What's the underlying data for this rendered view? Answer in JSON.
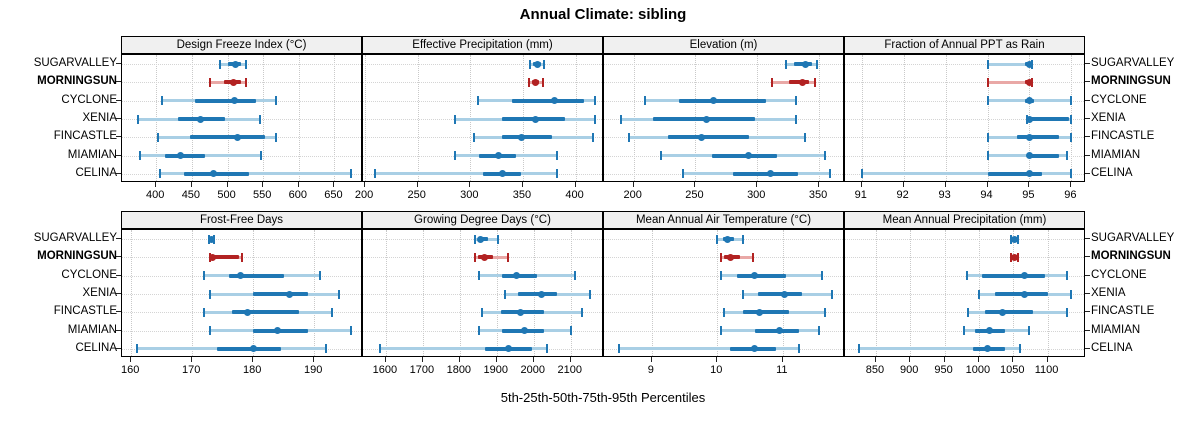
{
  "title": "Annual Climate: sibling",
  "caption": "5th-25th-50th-75th-95th Percentiles",
  "colors": {
    "blue": "#1f77b4",
    "blue_light": "#a9cfe5",
    "red": "#b22222",
    "red_light": "#e9a8a6",
    "grid": "#c9c9c9",
    "strip_bg": "#f0f0f0",
    "border": "#000000"
  },
  "chart_data": {
    "type": "dotplot-percentiles",
    "title": "Annual Climate: sibling",
    "caption": "5th-25th-50th-75th-95th Percentiles",
    "percentiles": [
      "5th",
      "25th",
      "50th",
      "75th",
      "95th"
    ],
    "sites": [
      "SUGARVALLEY",
      "MORNINGSUN",
      "CYCLONE",
      "XENIA",
      "FINCASTLE",
      "MIAMIAN",
      "CELINA"
    ],
    "highlight_site": "MORNINGSUN",
    "legend_position": "none",
    "grid": "dotted",
    "panels": [
      {
        "label": "Design Freeze Index (°C)",
        "row": 0,
        "col": 0,
        "xlim": [
          352,
          690
        ],
        "ticks": [
          400,
          450,
          500,
          550,
          600,
          650
        ],
        "values": {
          "SUGARVALLEY": [
            490,
            500,
            511,
            519,
            526
          ],
          "MORNINGSUN": [
            476,
            495,
            509,
            519,
            526
          ],
          "CYCLONE": [
            408,
            455,
            510,
            540,
            568
          ],
          "XENIA": [
            375,
            430,
            462,
            497,
            545
          ],
          "FINCASTLE": [
            403,
            448,
            514,
            552,
            568
          ],
          "MIAMIAN": [
            377,
            413,
            434,
            469,
            547
          ],
          "CELINA": [
            405,
            439,
            481,
            530,
            673
          ]
        }
      },
      {
        "label": "Effective Precipitation (mm)",
        "row": 0,
        "col": 1,
        "xlim": [
          198,
          427
        ],
        "ticks": [
          200,
          250,
          300,
          350,
          400
        ],
        "values": {
          "SUGARVALLEY": [
            357,
            360,
            364,
            367,
            370
          ],
          "MORNINGSUN": [
            356,
            359,
            362,
            365,
            369
          ],
          "CYCLONE": [
            307,
            340,
            380,
            408,
            418
          ],
          "XENIA": [
            285,
            330,
            362,
            390,
            418
          ],
          "FINCASTLE": [
            303,
            330,
            349,
            378,
            417
          ],
          "MIAMIAN": [
            285,
            308,
            327,
            343,
            382
          ],
          "CELINA": [
            209,
            312,
            331,
            348,
            382
          ]
        }
      },
      {
        "label": "Elevation (m)",
        "row": 0,
        "col": 2,
        "xlim": [
          176,
          371
        ],
        "ticks": [
          200,
          250,
          300,
          350
        ],
        "values": {
          "SUGARVALLEY": [
            323,
            330,
            339,
            344,
            348
          ],
          "MORNINGSUN": [
            312,
            326,
            337,
            342,
            347
          ],
          "CYCLONE": [
            209,
            237,
            265,
            307,
            331
          ],
          "XENIA": [
            190,
            216,
            259,
            298,
            331
          ],
          "FINCASTLE": [
            196,
            228,
            255,
            293,
            339
          ],
          "MIAMIAN": [
            222,
            263,
            293,
            316,
            355
          ],
          "CELINA": [
            240,
            280,
            311,
            333,
            359
          ]
        }
      },
      {
        "label": "Fraction of Annual PPT as Rain",
        "row": 0,
        "col": 3,
        "xlim": [
          90.6,
          96.35
        ],
        "ticks": [
          91,
          92,
          93,
          94,
          95,
          96
        ],
        "values": {
          "SUGARVALLEY": [
            94,
            94.9,
            95,
            95,
            95.05
          ],
          "MORNINGSUN": [
            94,
            94.9,
            95,
            95,
            95.05
          ],
          "CYCLONE": [
            94,
            94.9,
            95,
            95.1,
            96
          ],
          "XENIA": [
            94.95,
            95,
            95,
            95.95,
            96
          ],
          "FINCASTLE": [
            94,
            94.7,
            95,
            95.7,
            96
          ],
          "MIAMIAN": [
            94,
            94.95,
            95,
            95.7,
            95.9
          ],
          "CELINA": [
            91,
            94,
            95,
            95.3,
            96
          ]
        }
      },
      {
        "label": "Frost-Free Days",
        "row": 1,
        "col": 0,
        "xlim": [
          158.5,
          198
        ],
        "ticks": [
          160,
          170,
          180,
          190
        ],
        "values": {
          "SUGARVALLEY": [
            172.8,
            173,
            173.1,
            173.3,
            173.5
          ],
          "MORNINGSUN": [
            172.9,
            173.1,
            173.3,
            177.7,
            178.2
          ],
          "CYCLONE": [
            172,
            176,
            178,
            185,
            191
          ],
          "XENIA": [
            173,
            180,
            186,
            189,
            194
          ],
          "FINCASTLE": [
            172,
            176.5,
            179,
            187.5,
            193
          ],
          "MIAMIAN": [
            173,
            180,
            184,
            189,
            196
          ],
          "CELINA": [
            161,
            174,
            180,
            184.5,
            192
          ]
        }
      },
      {
        "label": "Growing Degree Days (°C)",
        "row": 1,
        "col": 1,
        "xlim": [
          1538,
          2190
        ],
        "ticks": [
          1600,
          1700,
          1800,
          1900,
          2000,
          2100
        ],
        "values": {
          "SUGARVALLEY": [
            1840,
            1848,
            1857,
            1876,
            1903
          ],
          "MORNINGSUN": [
            1840,
            1850,
            1866,
            1890,
            1930
          ],
          "CYCLONE": [
            1852,
            1915,
            1952,
            2008,
            2112
          ],
          "XENIA": [
            1923,
            1957,
            2022,
            2063,
            2153
          ],
          "FINCASTLE": [
            1860,
            1910,
            1964,
            2028,
            2130
          ],
          "MIAMIAN": [
            1851,
            1914,
            1975,
            2027,
            2101
          ],
          "CELINA": [
            1585,
            1869,
            1932,
            1995,
            2036
          ]
        }
      },
      {
        "label": "Mean Annual Air Temperature (°C)",
        "row": 1,
        "col": 2,
        "xlim": [
          8.27,
          11.95
        ],
        "ticks": [
          9,
          10,
          11
        ],
        "values": {
          "SUGARVALLEY": [
            10.0,
            10.08,
            10.15,
            10.25,
            10.4
          ],
          "MORNINGSUN": [
            10.05,
            10.1,
            10.2,
            10.35,
            10.55
          ],
          "CYCLONE": [
            10.05,
            10.3,
            10.57,
            11.05,
            11.6
          ],
          "XENIA": [
            10.4,
            10.62,
            11.02,
            11.3,
            11.75
          ],
          "FINCASTLE": [
            10.1,
            10.4,
            10.65,
            11.1,
            11.65
          ],
          "MIAMIAN": [
            10.05,
            10.57,
            10.95,
            11.25,
            11.55
          ],
          "CELINA": [
            8.5,
            10.2,
            10.57,
            10.9,
            11.25
          ]
        }
      },
      {
        "label": "Mean Annual Precipitation (mm)",
        "row": 1,
        "col": 3,
        "xlim": [
          805,
          1156
        ],
        "ticks": [
          850,
          900,
          950,
          1000,
          1050,
          1100
        ],
        "values": {
          "SUGARVALLEY": [
            1047,
            1050,
            1052,
            1054,
            1057
          ],
          "MORNINGSUN": [
            1047,
            1050,
            1052,
            1055,
            1057
          ],
          "CYCLONE": [
            982,
            1004,
            1066,
            1096,
            1128
          ],
          "XENIA": [
            1000,
            1023,
            1066,
            1100,
            1134
          ],
          "FINCASTLE": [
            984,
            1009,
            1034,
            1079,
            1129
          ],
          "MIAMIAN": [
            979,
            995,
            1016,
            1038,
            1073
          ],
          "CELINA": [
            825,
            992,
            1012,
            1038,
            1060
          ]
        }
      }
    ]
  }
}
